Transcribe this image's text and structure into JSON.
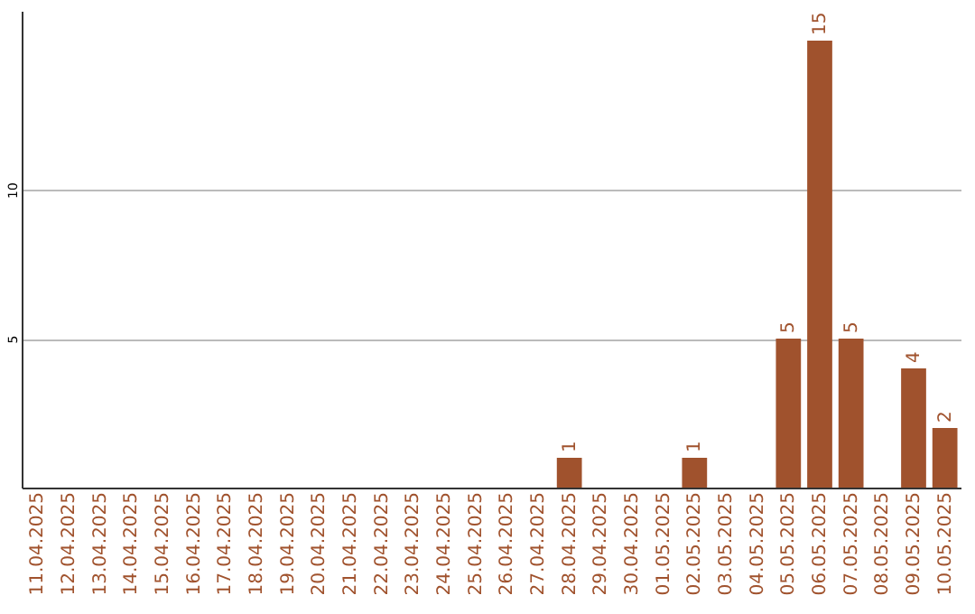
{
  "chart_data": {
    "type": "bar",
    "categories": [
      "11.04.2025",
      "12.04.2025",
      "13.04.2025",
      "14.04.2025",
      "15.04.2025",
      "16.04.2025",
      "17.04.2025",
      "18.04.2025",
      "19.04.2025",
      "20.04.2025",
      "21.04.2025",
      "22.04.2025",
      "23.04.2025",
      "24.04.2025",
      "25.04.2025",
      "26.04.2025",
      "27.04.2025",
      "28.04.2025",
      "29.04.2025",
      "30.04.2025",
      "01.05.2025",
      "02.05.2025",
      "03.05.2025",
      "04.05.2025",
      "05.05.2025",
      "06.05.2025",
      "07.05.2025",
      "08.05.2025",
      "09.05.2025",
      "10.05.2025"
    ],
    "values": [
      0,
      0,
      0,
      0,
      0,
      0,
      0,
      0,
      0,
      0,
      0,
      0,
      0,
      0,
      0,
      0,
      0,
      1,
      0,
      0,
      0,
      1,
      0,
      0,
      5,
      15,
      5,
      0,
      4,
      2
    ],
    "value_labels": [
      null,
      null,
      null,
      null,
      null,
      null,
      null,
      null,
      null,
      null,
      null,
      null,
      null,
      null,
      null,
      null,
      null,
      "1",
      null,
      null,
      null,
      "1",
      null,
      null,
      "5",
      "15",
      "5",
      null,
      "4",
      "2"
    ],
    "color": "#a0522d",
    "ylim": [
      0,
      16
    ],
    "yticks": [
      5,
      10
    ],
    "grid": "y"
  }
}
